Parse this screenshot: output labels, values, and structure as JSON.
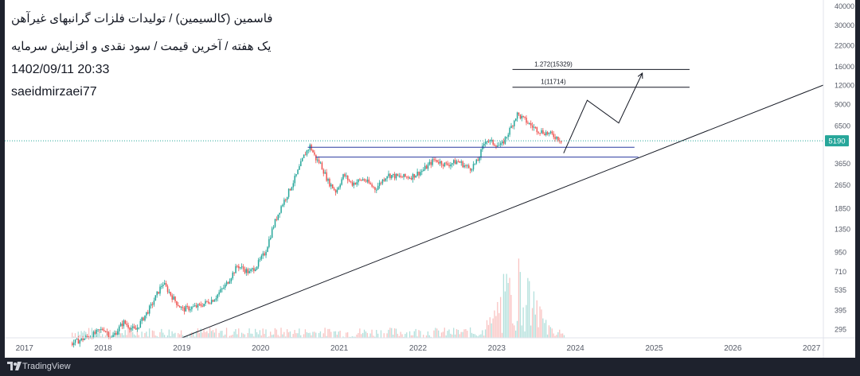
{
  "header": {
    "line1": "فاسمین (کالسیمین) / تولیدات فلزات گرانبهای غیرآهن",
    "line2": "یک هفته / آخرین قیمت / سود نقدی و افزایش سرمایه",
    "datetime": "1402/09/11 20:33",
    "author": "saeidmirzaei77"
  },
  "footer": {
    "brand": "TradingView"
  },
  "colors": {
    "up": "#26a69a",
    "down": "#ef5350",
    "support_line": "#2a3a9f",
    "trendline": "#131722",
    "last_price_bg": "#26a69a",
    "background": "#ffffff",
    "chrome": "#1e222d"
  },
  "chart_data": {
    "type": "candlestick",
    "scale": "log",
    "grid": false,
    "x_ticks": [
      "2017",
      "2018",
      "2019",
      "2020",
      "2021",
      "2022",
      "2023",
      "2024",
      "2025",
      "2026",
      "2027"
    ],
    "y_ticks": [
      295,
      395,
      535,
      710,
      950,
      1350,
      1850,
      2650,
      3650,
      6500,
      9000,
      12000,
      16000,
      22000,
      30000,
      40000
    ],
    "ylim": [
      260,
      40000
    ],
    "last_price": {
      "label": "5190",
      "value": 5190
    },
    "fib_levels": [
      {
        "label": "1.272(15329)",
        "value": 15329,
        "x_start": 2023.2,
        "x_end": 2025.45
      },
      {
        "label": "1(11714)",
        "value": 11714,
        "x_start": 2023.2,
        "x_end": 2025.45
      }
    ],
    "support_lines": [
      {
        "value": 4700,
        "x_start": 2020.6,
        "x_end": 2024.75
      },
      {
        "value": 4050,
        "x_start": 2020.7,
        "x_end": 2024.8
      }
    ],
    "trendline": {
      "x": [
        2019.0,
        2027.15
      ],
      "y": [
        260,
        12100
      ]
    },
    "projection": {
      "x": [
        2023.85,
        2024.15,
        2024.55,
        2024.85
      ],
      "y": [
        4300,
        9600,
        6800,
        14500
      ]
    },
    "price_path": {
      "x": [
        2017.6,
        2017.85,
        2018.0,
        2018.1,
        2018.25,
        2018.4,
        2018.5,
        2018.6,
        2018.75,
        2018.9,
        2019.0,
        2019.2,
        2019.4,
        2019.55,
        2019.7,
        2019.85,
        2019.95,
        2020.05,
        2020.15,
        2020.25,
        2020.35,
        2020.45,
        2020.55,
        2020.62,
        2020.7,
        2020.75,
        2020.85,
        2020.95,
        2021.05,
        2021.15,
        2021.3,
        2021.45,
        2021.6,
        2021.75,
        2021.9,
        2022.05,
        2022.2,
        2022.35,
        2022.5,
        2022.65,
        2022.75,
        2022.85,
        2022.95,
        2023.05,
        2023.15,
        2023.25,
        2023.35,
        2023.45,
        2023.55,
        2023.65,
        2023.75,
        2023.82
      ],
      "y": [
        240,
        270,
        300,
        260,
        330,
        290,
        350,
        420,
        600,
        460,
        400,
        420,
        470,
        580,
        780,
        700,
        790,
        950,
        1400,
        1900,
        2400,
        3100,
        4200,
        4800,
        3900,
        3700,
        2800,
        2400,
        3100,
        2700,
        2900,
        2500,
        3100,
        3000,
        3000,
        3300,
        3900,
        3600,
        3800,
        3400,
        3800,
        5300,
        5000,
        4800,
        6000,
        7800,
        7100,
        6400,
        6000,
        5800,
        5500,
        5190
      ]
    },
    "volume": {
      "x_range": [
        2017.6,
        2023.85
      ],
      "peak": {
        "x": 2023.25,
        "value": 1.0
      }
    }
  }
}
